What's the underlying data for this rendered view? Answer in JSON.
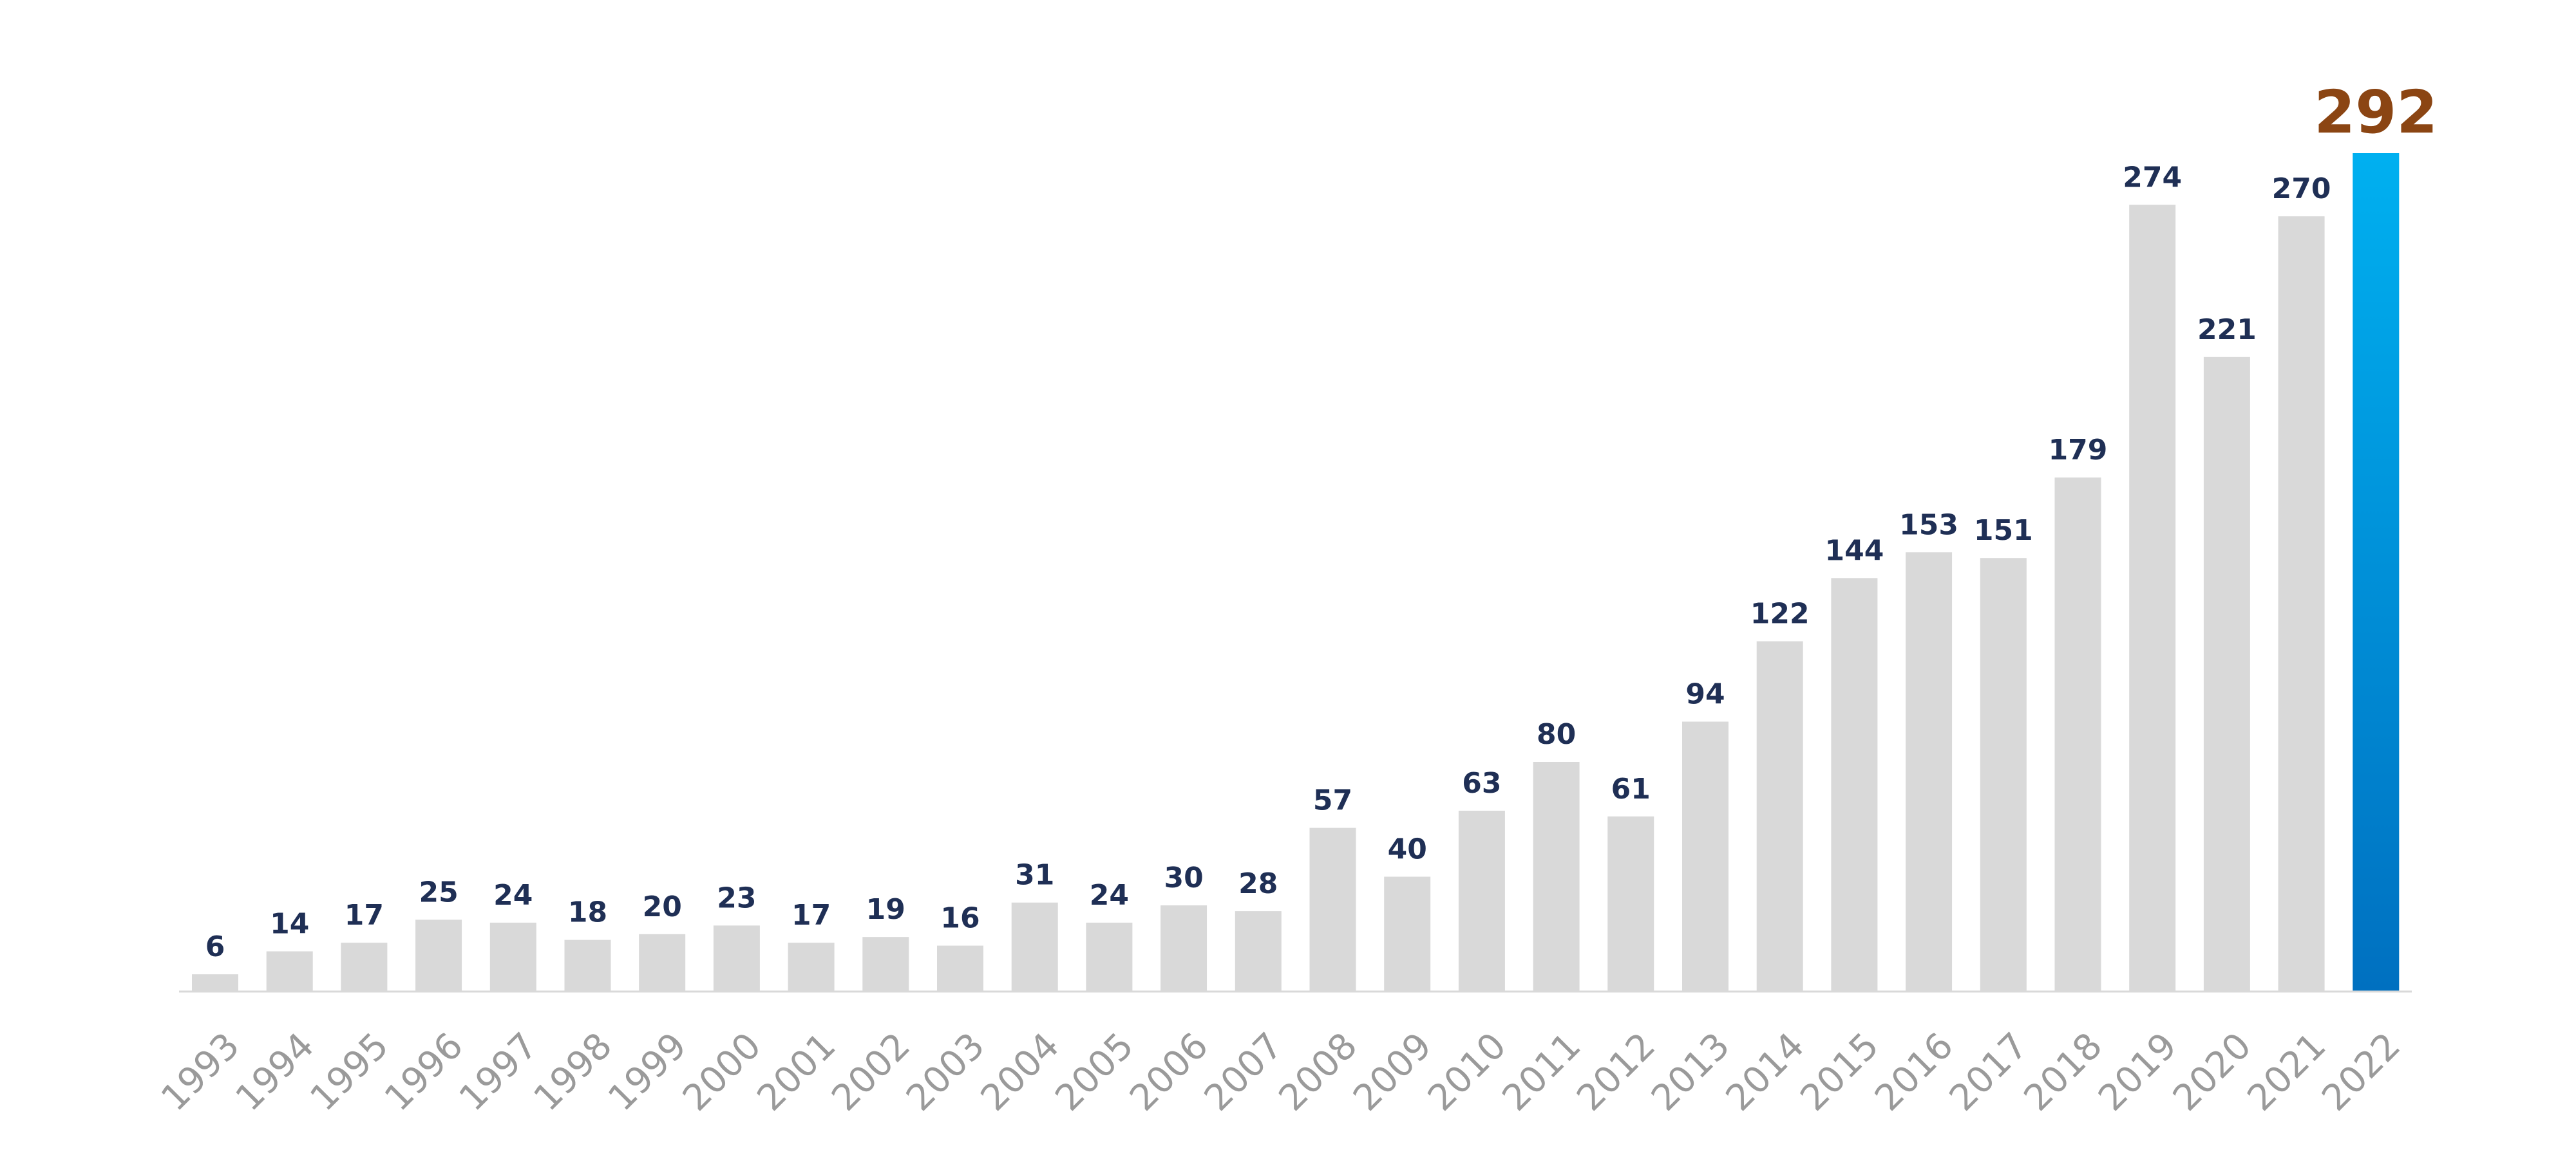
{
  "chart_data": {
    "type": "bar",
    "categories": [
      "1993",
      "1994",
      "1995",
      "1996",
      "1997",
      "1998",
      "1999",
      "2000",
      "2001",
      "2002",
      "2003",
      "2004",
      "2005",
      "2006",
      "2007",
      "2008",
      "2009",
      "2010",
      "2011",
      "2012",
      "2013",
      "2014",
      "2015",
      "2016",
      "2017",
      "2018",
      "2019",
      "2020",
      "2021",
      "2022"
    ],
    "values": [
      6,
      14,
      17,
      25,
      24,
      18,
      20,
      23,
      17,
      19,
      16,
      31,
      24,
      30,
      28,
      57,
      40,
      63,
      80,
      61,
      94,
      122,
      144,
      153,
      151,
      179,
      274,
      221,
      270,
      292
    ],
    "title": "",
    "xlabel": "",
    "ylabel": "",
    "ylim": [
      0,
      292
    ],
    "grid": false,
    "legend": "none",
    "highlight_category": "2022",
    "colors": {
      "bar": "#d9d9d9",
      "highlight_top": "#00b0f0",
      "highlight_bottom": "#0070c0",
      "value_label": "#1f2f55",
      "highlight_label": "#8b4513",
      "tick_label": "#9a9a9a",
      "baseline": "#d9d9d9"
    }
  }
}
